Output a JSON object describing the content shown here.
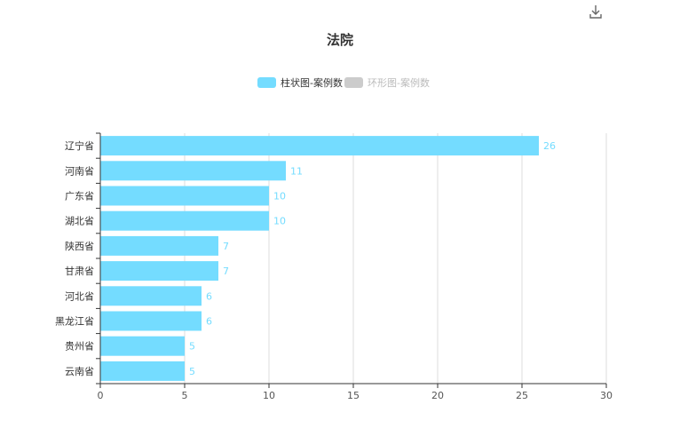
{
  "toolbar": {
    "download_icon": "download-icon"
  },
  "chart_data": {
    "type": "bar",
    "orientation": "horizontal",
    "title": "法院",
    "legend": [
      {
        "name": "柱状图-案例数",
        "color": "#74dcff",
        "active": true
      },
      {
        "name": "环形图-案例数",
        "color": "#cccccc",
        "active": false
      }
    ],
    "categories": [
      "辽宁省",
      "河南省",
      "广东省",
      "湖北省",
      "陕西省",
      "甘肃省",
      "河北省",
      "黑龙江省",
      "贵州省",
      "云南省"
    ],
    "series": [
      {
        "name": "柱状图-案例数",
        "values": [
          26,
          11,
          10,
          10,
          7,
          7,
          6,
          6,
          5,
          5
        ]
      }
    ],
    "xlim": [
      0,
      30
    ],
    "xticks": [
      0,
      5,
      10,
      15,
      20,
      25,
      30
    ],
    "grid": "vertical",
    "legend_position": "top-center",
    "colors": {
      "bar": "#74dcff",
      "data_label": "#74dcff",
      "grid": "#dddddd",
      "axis": "#333333"
    }
  }
}
